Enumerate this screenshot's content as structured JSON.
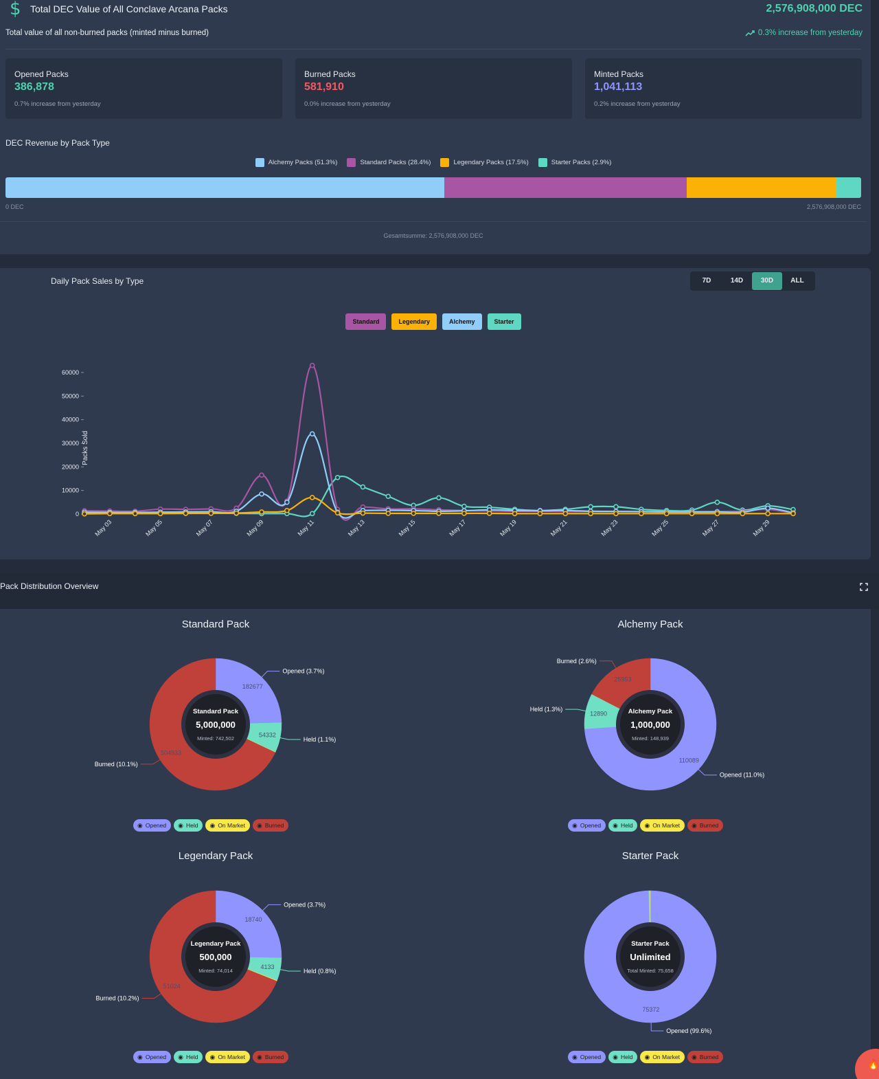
{
  "summary": {
    "icon": "dollar-icon",
    "title": "Total DEC Value of All Conclave Arcana Packs",
    "total": "2,576,908,000 DEC",
    "subtitle": "Total value of all non-burned packs (minted minus burned)",
    "trend_text": "0.3% increase from yesterday"
  },
  "stats": [
    {
      "label": "Opened Packs",
      "value": "386,878",
      "delta": "0.7% increase from yesterday",
      "color": "#4fd1b0"
    },
    {
      "label": "Burned Packs",
      "value": "581,910",
      "delta": "0.0% increase from yesterday",
      "color": "#f25a64"
    },
    {
      "label": "Minted Packs",
      "value": "1,041,113",
      "delta": "0.2% increase from yesterday",
      "color": "#8f94ff"
    }
  ],
  "revenue": {
    "title": "DEC Revenue by Pack Type",
    "legend": [
      {
        "label": "Alchemy Packs (51.3%)",
        "color": "#90cdf9",
        "share": 51.3
      },
      {
        "label": "Standard Packs (28.4%)",
        "color": "#a855a3",
        "share": 28.4
      },
      {
        "label": "Legendary Packs (17.5%)",
        "color": "#fbb105",
        "share": 17.5
      },
      {
        "label": "Starter Packs (2.9%)",
        "color": "#5fd8c3",
        "share": 2.9
      }
    ],
    "min_label": "0 DEC",
    "max_label": "2,576,908,000 DEC",
    "sum_label": "Gesamtsumme: 2,576,908,000 DEC"
  },
  "sales": {
    "title": "Daily Pack Sales by Type",
    "ranges": [
      {
        "label": "7D",
        "active": false
      },
      {
        "label": "14D",
        "active": false
      },
      {
        "label": "30D",
        "active": true
      },
      {
        "label": "ALL",
        "active": false
      }
    ],
    "series_buttons": [
      {
        "label": "Standard",
        "color": "#a855a3"
      },
      {
        "label": "Legendary",
        "color": "#fbb105"
      },
      {
        "label": "Alchemy",
        "color": "#90cdf9"
      },
      {
        "label": "Starter",
        "color": "#5fd8c3"
      }
    ]
  },
  "chart_data": {
    "type": "line",
    "ylabel": "Packs Sold",
    "ylim": [
      0,
      60000
    ],
    "yticks": [
      0,
      10000,
      20000,
      30000,
      40000,
      50000,
      60000
    ],
    "x": [
      "May 02",
      "May 03",
      "May 04",
      "May 05",
      "May 06",
      "May 07",
      "May 08",
      "May 09",
      "May 10",
      "May 11",
      "May 12",
      "May 13",
      "May 14",
      "May 15",
      "May 16",
      "May 17",
      "May 18",
      "May 19",
      "May 20",
      "May 21",
      "May 22",
      "May 23",
      "May 24",
      "May 25",
      "May 26",
      "May 27",
      "May 28",
      "May 29",
      "May 30"
    ],
    "xticks": [
      "May 03",
      "May 05",
      "May 07",
      "May 09",
      "May 11",
      "May 13",
      "May 15",
      "May 17",
      "May 19",
      "May 21",
      "May 23",
      "May 25",
      "May 27",
      "May 29"
    ],
    "series": [
      {
        "name": "Starter",
        "color": "#5fd8c3",
        "values": [
          300,
          400,
          300,
          300,
          300,
          400,
          300,
          200,
          200,
          200,
          15500,
          11500,
          7500,
          3700,
          6900,
          3300,
          2900,
          2000,
          1500,
          2000,
          3100,
          3100,
          2000,
          1500,
          1700,
          5000,
          1700,
          3500,
          1900
        ]
      },
      {
        "name": "Standard",
        "color": "#a855a3",
        "values": [
          1400,
          1300,
          1200,
          2100,
          2000,
          2200,
          2500,
          16500,
          5500,
          63000,
          2000,
          3000,
          2200,
          2200,
          1800,
          1500,
          1300,
          1200,
          1200,
          1100,
          1100,
          1100,
          1100,
          1000,
          1000,
          1100,
          1200,
          2000,
          300
        ]
      },
      {
        "name": "Alchemy",
        "color": "#90cdf9",
        "values": [
          800,
          700,
          700,
          800,
          900,
          1000,
          1200,
          8500,
          5000,
          34000,
          800,
          1500,
          1600,
          1500,
          1200,
          1400,
          1800,
          1500,
          1400,
          1500,
          1200,
          1100,
          1000,
          900,
          900,
          900,
          800,
          2500,
          500
        ]
      },
      {
        "name": "Legendary",
        "color": "#fbb105",
        "values": [
          100,
          200,
          200,
          200,
          300,
          300,
          400,
          900,
          1500,
          7000,
          500,
          400,
          300,
          300,
          300,
          300,
          300,
          200,
          200,
          200,
          200,
          200,
          200,
          200,
          200,
          200,
          200,
          200,
          200
        ]
      }
    ]
  },
  "distribution": {
    "title": "Pack Distribution Overview",
    "legend_labels": [
      "Opened",
      "Held",
      "On Market",
      "Burned"
    ],
    "legend_colors": [
      "#8f94ff",
      "#6fe0c4",
      "#f9e84a",
      "#c0413a"
    ],
    "packs": [
      {
        "title": "Standard Pack",
        "center_name": "Standard Pack",
        "center_value": "5,000,000",
        "center_sub": "Minted: 742,502",
        "slices": [
          {
            "key": "Opened",
            "value": 182677,
            "color": "#8f94ff",
            "label": "Opened (3.7%)"
          },
          {
            "key": "Held",
            "value": 54332,
            "color": "#6fe0c4",
            "label": "Held (1.1%)"
          },
          {
            "key": "On Market",
            "value": 560,
            "color": "#f9e84a",
            "label": ""
          },
          {
            "key": "Burned",
            "value": 504933,
            "color": "#c0413a",
            "label": "Burned (10.1%)"
          }
        ]
      },
      {
        "title": "Alchemy Pack",
        "center_name": "Alchemy Pack",
        "center_value": "1,000,000",
        "center_sub": "Minted: 148,939",
        "slices": [
          {
            "key": "Opened",
            "value": 110089,
            "color": "#8f94ff",
            "label": "Opened (11.0%)"
          },
          {
            "key": "Held",
            "value": 12890,
            "color": "#6fe0c4",
            "label": "Held (1.3%)"
          },
          {
            "key": "On Market",
            "value": 7,
            "color": "#f9e84a",
            "label": ""
          },
          {
            "key": "Burned",
            "value": 25953,
            "color": "#c0413a",
            "label": "Burned (2.6%)"
          }
        ]
      },
      {
        "title": "Legendary Pack",
        "center_name": "Legendary Pack",
        "center_value": "500,000",
        "center_sub": "Minted: 74,014",
        "slices": [
          {
            "key": "Opened",
            "value": 18740,
            "color": "#8f94ff",
            "label": "Opened (3.7%)"
          },
          {
            "key": "Held",
            "value": 4133,
            "color": "#6fe0c4",
            "label": "Held (0.8%)"
          },
          {
            "key": "On Market",
            "value": 117,
            "color": "#f9e84a",
            "label": ""
          },
          {
            "key": "Burned",
            "value": 51024,
            "color": "#c0413a",
            "label": "Burned (10.2%)"
          }
        ]
      },
      {
        "title": "Starter Pack",
        "center_name": "Starter Pack",
        "center_value": "Unlimited",
        "center_sub": "Total Minted: 75,658",
        "slices": [
          {
            "key": "Opened",
            "value": 75372,
            "color": "#8f94ff",
            "label": "Opened (99.6%)"
          },
          {
            "key": "Held",
            "value": 230,
            "color": "#6fe0c4",
            "label": ""
          },
          {
            "key": "On Market",
            "value": 56,
            "color": "#f9e84a",
            "label": ""
          },
          {
            "key": "Burned",
            "value": 0,
            "color": "#c0413a",
            "label": ""
          }
        ]
      }
    ]
  }
}
